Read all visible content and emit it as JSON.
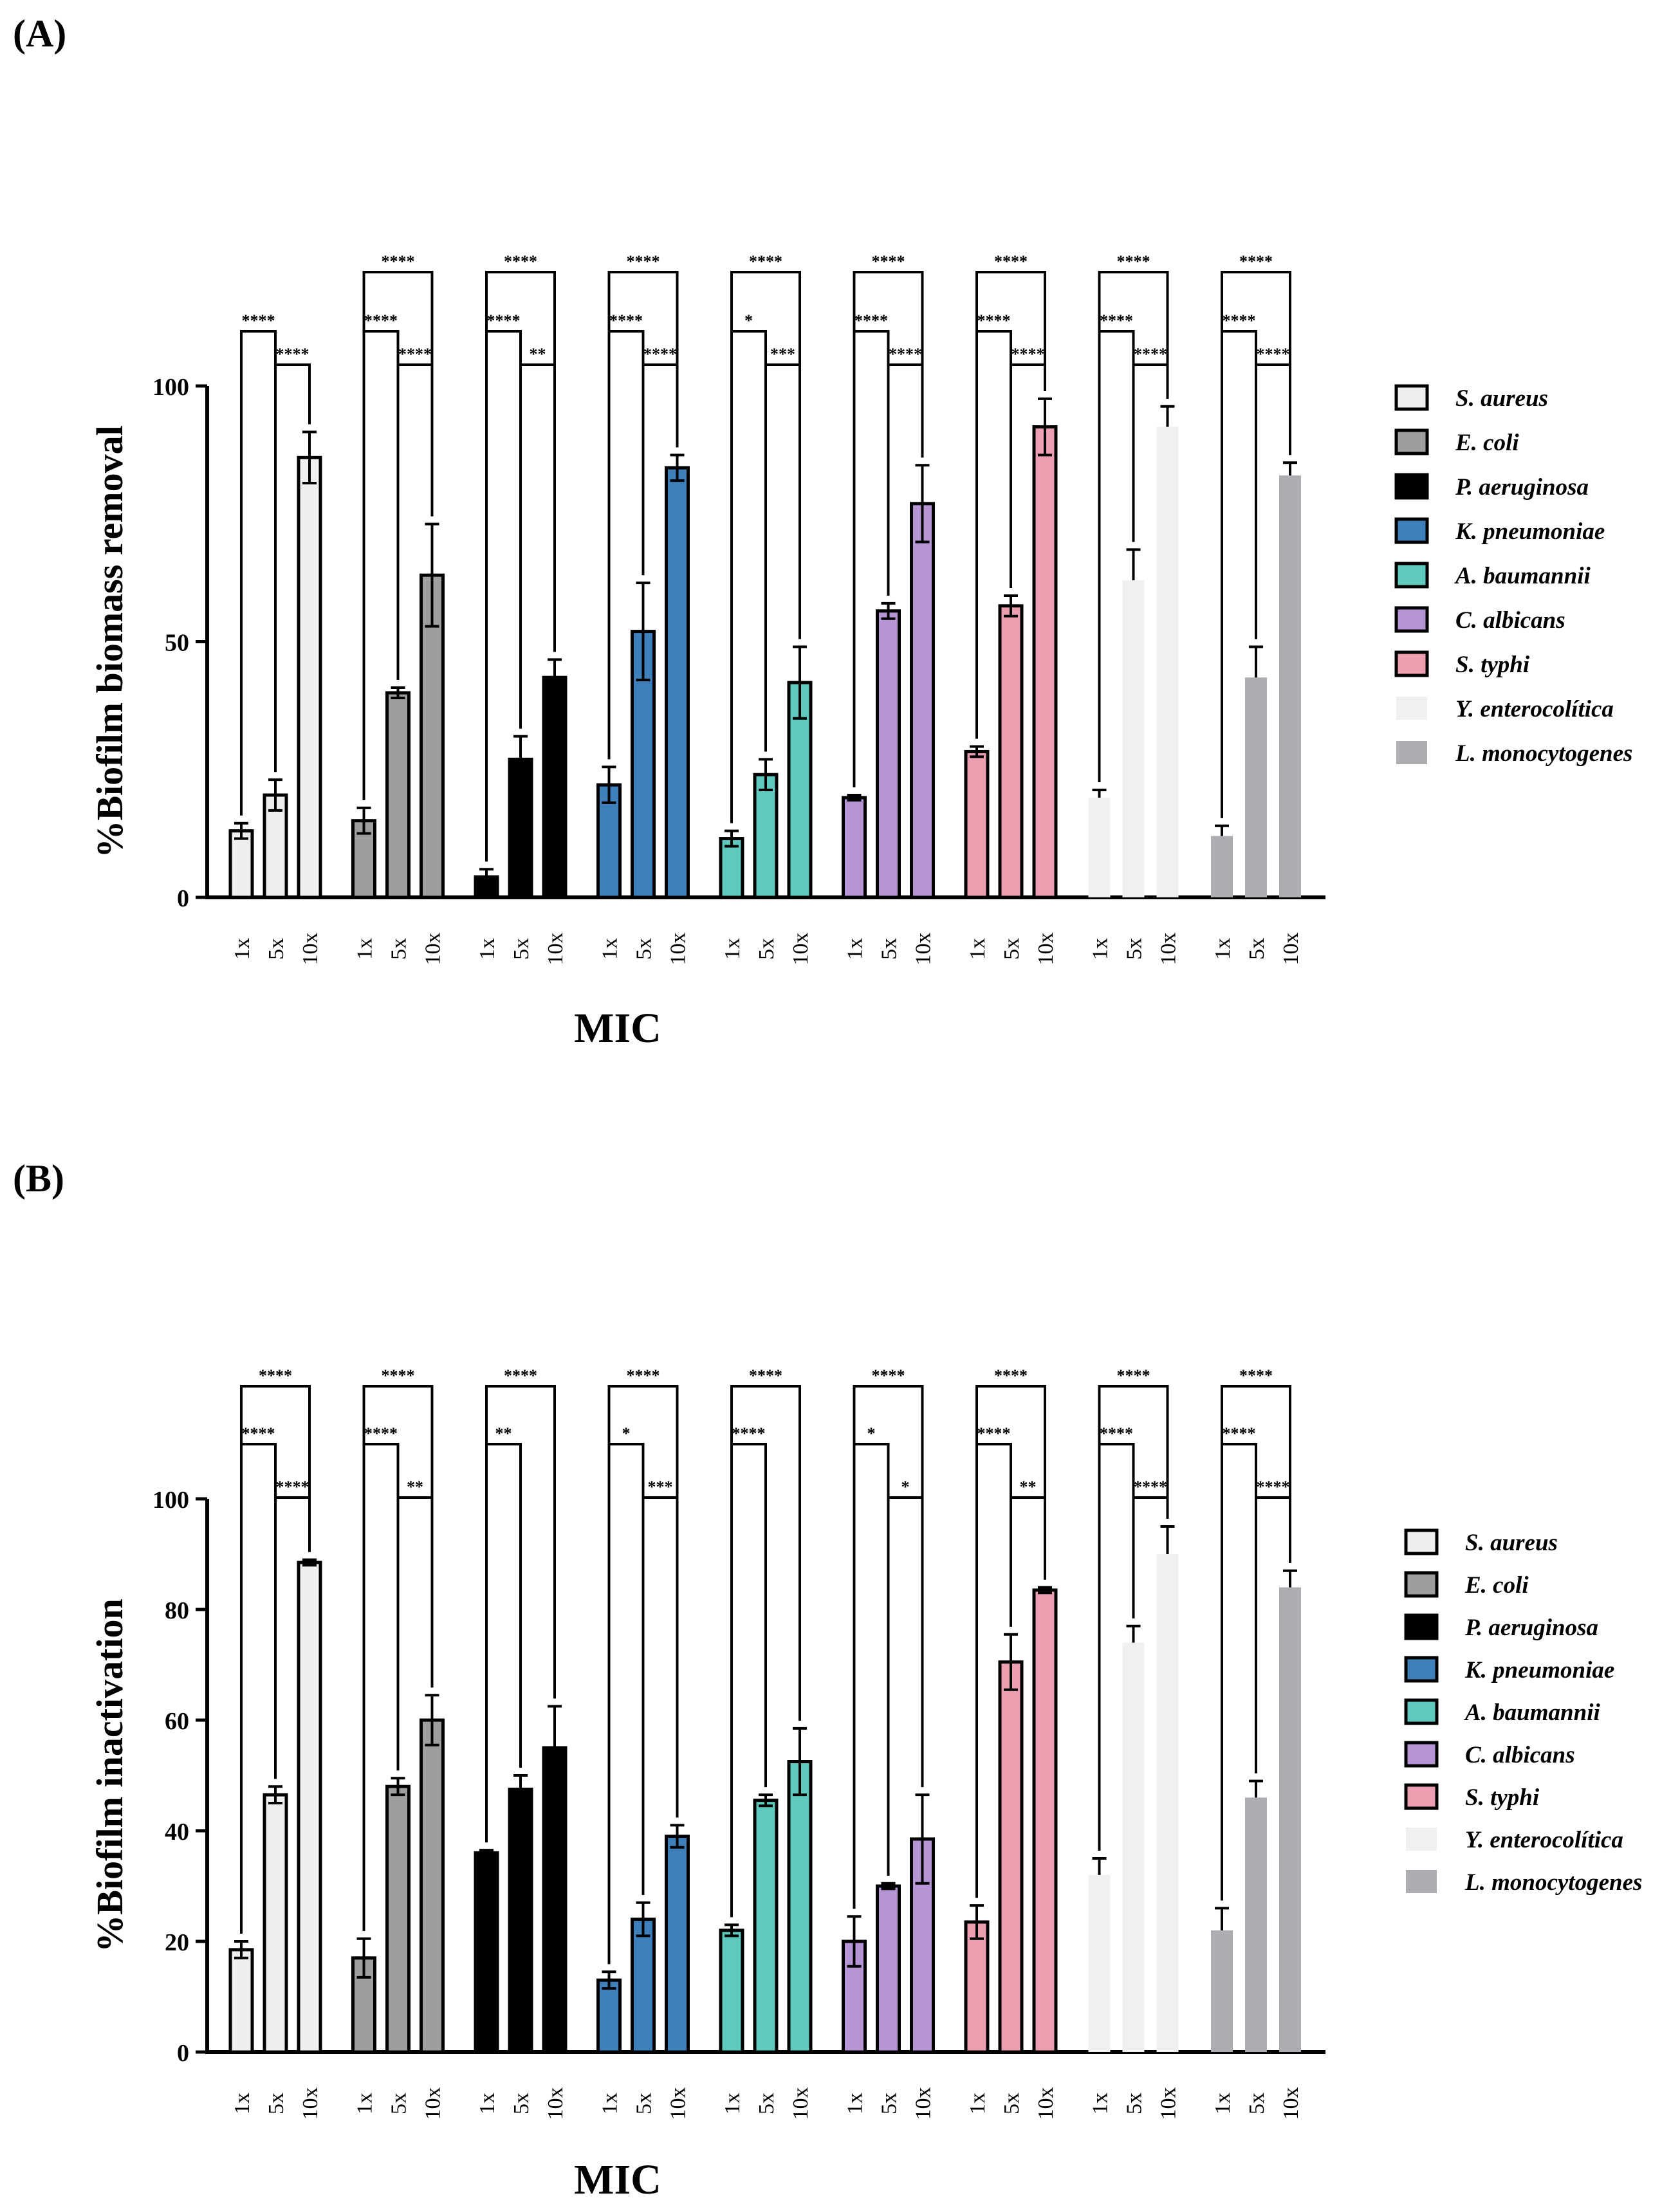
{
  "panel_labels": [
    "(A)",
    "(B)"
  ],
  "chart_data": [
    {
      "type": "bar",
      "panel": "(A)",
      "ylabel": "%Biofilm biomass removal",
      "xlabel": "MIC",
      "ylim": [
        0,
        100
      ],
      "yticks": [
        0,
        50,
        100
      ],
      "categories": [
        "1x",
        "5x",
        "10x"
      ],
      "legend": [
        "S. aureus",
        "E. coli",
        "P. aeruginosa",
        "K. pneumoniae",
        "A. baumannii",
        "C. albicans",
        "S. typhi",
        "Y. enterocolítica",
        "L. monocytogenes"
      ],
      "series": [
        {
          "name": "S. aureus",
          "fill": "#efefef",
          "stroke": "#000000",
          "values": [
            13,
            20,
            86
          ],
          "errors": [
            1.5,
            3,
            5
          ]
        },
        {
          "name": "E. coli",
          "fill": "#9e9e9e",
          "stroke": "#000000",
          "values": [
            15,
            40,
            63
          ],
          "errors": [
            2.5,
            1,
            10
          ]
        },
        {
          "name": "P. aeruginosa",
          "fill": "#000000",
          "stroke": "#000000",
          "values": [
            4,
            27,
            43
          ],
          "errors": [
            1.5,
            4.5,
            3.5
          ]
        },
        {
          "name": "K. pneumoniae",
          "fill": "#3f7fba",
          "stroke": "#000000",
          "values": [
            22,
            52,
            84
          ],
          "errors": [
            3.5,
            9.5,
            2.5
          ]
        },
        {
          "name": "A. baumannii",
          "fill": "#5fc9be",
          "stroke": "#000000",
          "values": [
            11.5,
            24,
            42
          ],
          "errors": [
            1.5,
            3,
            7
          ]
        },
        {
          "name": "C. albicans",
          "fill": "#b695d4",
          "stroke": "#000000",
          "values": [
            19.5,
            56,
            77
          ],
          "errors": [
            0.5,
            1.5,
            7.5
          ]
        },
        {
          "name": "S. typhi",
          "fill": "#ec9fb1",
          "stroke": "#000000",
          "values": [
            28.5,
            57,
            92
          ],
          "errors": [
            1,
            2,
            5.5
          ]
        },
        {
          "name": "Y. enterocolítica",
          "fill": "#f0f0f0",
          "stroke": "none",
          "values": [
            19.5,
            62,
            92
          ],
          "errors": [
            1.5,
            6,
            4
          ]
        },
        {
          "name": "L. monocytogenes",
          "fill": "#adadb2",
          "stroke": "none",
          "values": [
            12,
            43,
            82.5
          ],
          "errors": [
            2,
            6,
            2.5
          ]
        }
      ],
      "significance": [
        [
          "****",
          "****",
          ""
        ],
        [
          "****",
          "****",
          "****"
        ],
        [
          "****",
          "**",
          "****"
        ],
        [
          "****",
          "****",
          "****"
        ],
        [
          "*",
          "***",
          "****"
        ],
        [
          "****",
          "****",
          "****"
        ],
        [
          "****",
          "****",
          "****"
        ],
        [
          "****",
          "****",
          "****"
        ],
        [
          "****",
          "****",
          "****"
        ]
      ]
    },
    {
      "type": "bar",
      "panel": "(B)",
      "ylabel": "%Biofilm inactivation",
      "xlabel": "MIC",
      "ylim": [
        0,
        100
      ],
      "yticks": [
        0,
        20,
        40,
        60,
        80,
        100
      ],
      "categories": [
        "1x",
        "5x",
        "10x"
      ],
      "legend": [
        "S. aureus",
        "E. coli",
        "P. aeruginosa",
        "K. pneumoniae",
        "A. baumannii",
        "C. albicans",
        "S. typhi",
        "Y. enterocolítica",
        "L. monocytogenes"
      ],
      "series": [
        {
          "name": "S. aureus",
          "fill": "#efefef",
          "stroke": "#000000",
          "values": [
            18.5,
            46.5,
            88.5
          ],
          "errors": [
            1.5,
            1.5,
            0.5
          ]
        },
        {
          "name": "E. coli",
          "fill": "#9e9e9e",
          "stroke": "#000000",
          "values": [
            17,
            48,
            60
          ],
          "errors": [
            3.5,
            1.5,
            4.5
          ]
        },
        {
          "name": "P. aeruginosa",
          "fill": "#000000",
          "stroke": "#000000",
          "values": [
            36,
            47.5,
            55
          ],
          "errors": [
            0.5,
            2.5,
            7.5
          ]
        },
        {
          "name": "K. pneumoniae",
          "fill": "#3f7fba",
          "stroke": "#000000",
          "values": [
            13,
            24,
            39
          ],
          "errors": [
            1.5,
            3,
            2
          ]
        },
        {
          "name": "A. baumannii",
          "fill": "#5fc9be",
          "stroke": "#000000",
          "values": [
            22,
            45.5,
            52.5
          ],
          "errors": [
            1,
            1,
            6
          ]
        },
        {
          "name": "C. albicans",
          "fill": "#b695d4",
          "stroke": "#000000",
          "values": [
            20,
            30,
            38.5
          ],
          "errors": [
            4.5,
            0.5,
            8
          ]
        },
        {
          "name": "S. typhi",
          "fill": "#ec9fb1",
          "stroke": "#000000",
          "values": [
            23.5,
            70.5,
            83.5
          ],
          "errors": [
            3,
            5,
            0.5
          ]
        },
        {
          "name": "Y. enterocolítica",
          "fill": "#f0f0f0",
          "stroke": "none",
          "values": [
            32,
            74,
            90
          ],
          "errors": [
            3,
            3,
            5
          ]
        },
        {
          "name": "L. monocytogenes",
          "fill": "#adadb2",
          "stroke": "none",
          "values": [
            22,
            46,
            84
          ],
          "errors": [
            4,
            3,
            3
          ]
        }
      ],
      "significance": [
        [
          "****",
          "****",
          "****"
        ],
        [
          "****",
          "**",
          "****"
        ],
        [
          "**",
          "",
          "****"
        ],
        [
          "*",
          "***",
          "****"
        ],
        [
          "****",
          "",
          "****"
        ],
        [
          "*",
          "*",
          "****"
        ],
        [
          "****",
          "**",
          "****"
        ],
        [
          "****",
          "****",
          "****"
        ],
        [
          "****",
          "****",
          "****"
        ]
      ]
    }
  ]
}
